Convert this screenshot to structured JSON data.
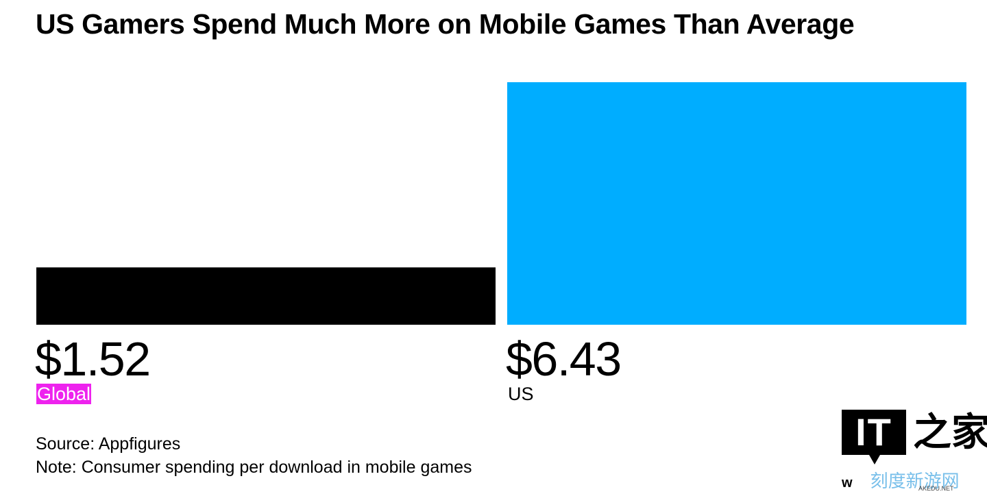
{
  "chart_data": {
    "type": "bar",
    "title": "US Gamers Spend Much More on Mobile Games Than Average",
    "categories": [
      "Global",
      "US"
    ],
    "values": [
      1.52,
      6.43
    ],
    "value_labels": [
      "$1.52",
      "$6.43"
    ],
    "ylim": [
      0,
      6.43
    ],
    "grid": false,
    "colors": [
      "#000000",
      "#00adff"
    ],
    "highlight_color": "#ee22ee"
  },
  "footer": {
    "source": "Source: Appfigures",
    "note": "Note: Consumer spending per download in mobile games"
  },
  "watermark": {
    "logo_text": "IT",
    "brush_text": "之家",
    "sub_prefix": "w",
    "sub_text": "刻度新游网",
    "domain": "AKEDU.NET"
  }
}
